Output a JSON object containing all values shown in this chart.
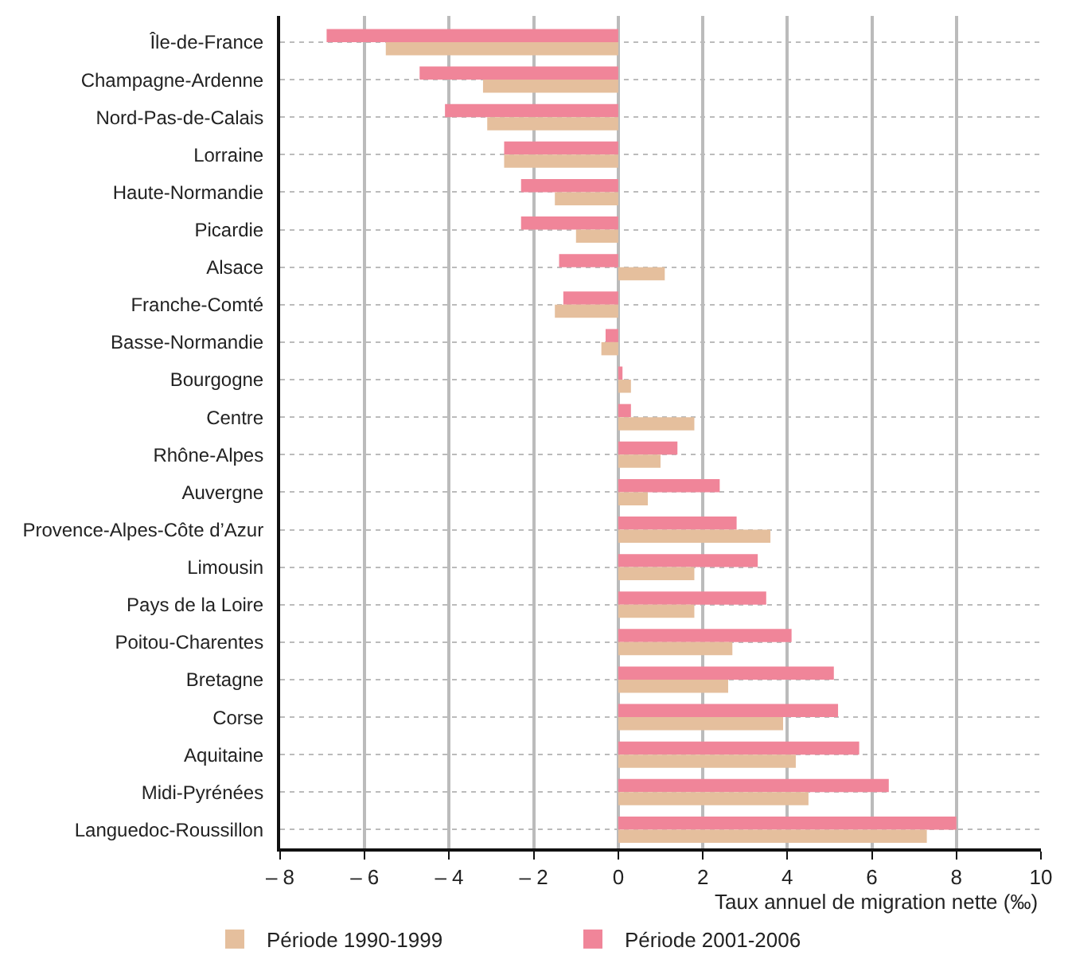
{
  "chart_data": {
    "type": "bar",
    "orientation": "horizontal",
    "categories": [
      "Île-de-France",
      "Champagne-Ardenne",
      "Nord-Pas-de-Calais",
      "Lorraine",
      "Haute-Normandie",
      "Picardie",
      "Alsace",
      "Franche-Comté",
      "Basse-Normandie",
      "Bourgogne",
      "Centre",
      "Rhône-Alpes",
      "Auvergne",
      "Provence-Alpes-Côte d’Azur",
      "Limousin",
      "Pays de la Loire",
      "Poitou-Charentes",
      "Bretagne",
      "Corse",
      "Aquitaine",
      "Midi-Pyrénées",
      "Languedoc-Roussillon"
    ],
    "series": [
      {
        "name": "Période 1990-1999",
        "color": "#e5bf9d",
        "values": [
          -5.5,
          -3.2,
          -3.1,
          -2.7,
          -1.5,
          -1.0,
          1.1,
          -1.5,
          -0.4,
          0.3,
          1.8,
          1.0,
          0.7,
          3.6,
          1.8,
          1.8,
          2.7,
          2.6,
          3.9,
          4.2,
          4.5,
          7.3
        ]
      },
      {
        "name": "Période 2001-2006",
        "color": "#f08599",
        "values": [
          -6.9,
          -4.7,
          -4.1,
          -2.7,
          -2.3,
          -2.3,
          -1.4,
          -1.3,
          -0.3,
          0.1,
          0.3,
          1.4,
          2.4,
          2.8,
          3.3,
          3.5,
          4.1,
          5.1,
          5.2,
          5.7,
          6.4,
          8.0
        ]
      }
    ],
    "xlabel": "Taux annuel de migration nette (‰)",
    "xlim": [
      -8,
      10
    ],
    "xticks": [
      {
        "value": -8,
        "label": "– 8"
      },
      {
        "value": -6,
        "label": "– 6"
      },
      {
        "value": -4,
        "label": "– 4"
      },
      {
        "value": -2,
        "label": "– 2"
      },
      0,
      2,
      4,
      6,
      8,
      10
    ],
    "grid": true,
    "legend": "bottom left"
  }
}
